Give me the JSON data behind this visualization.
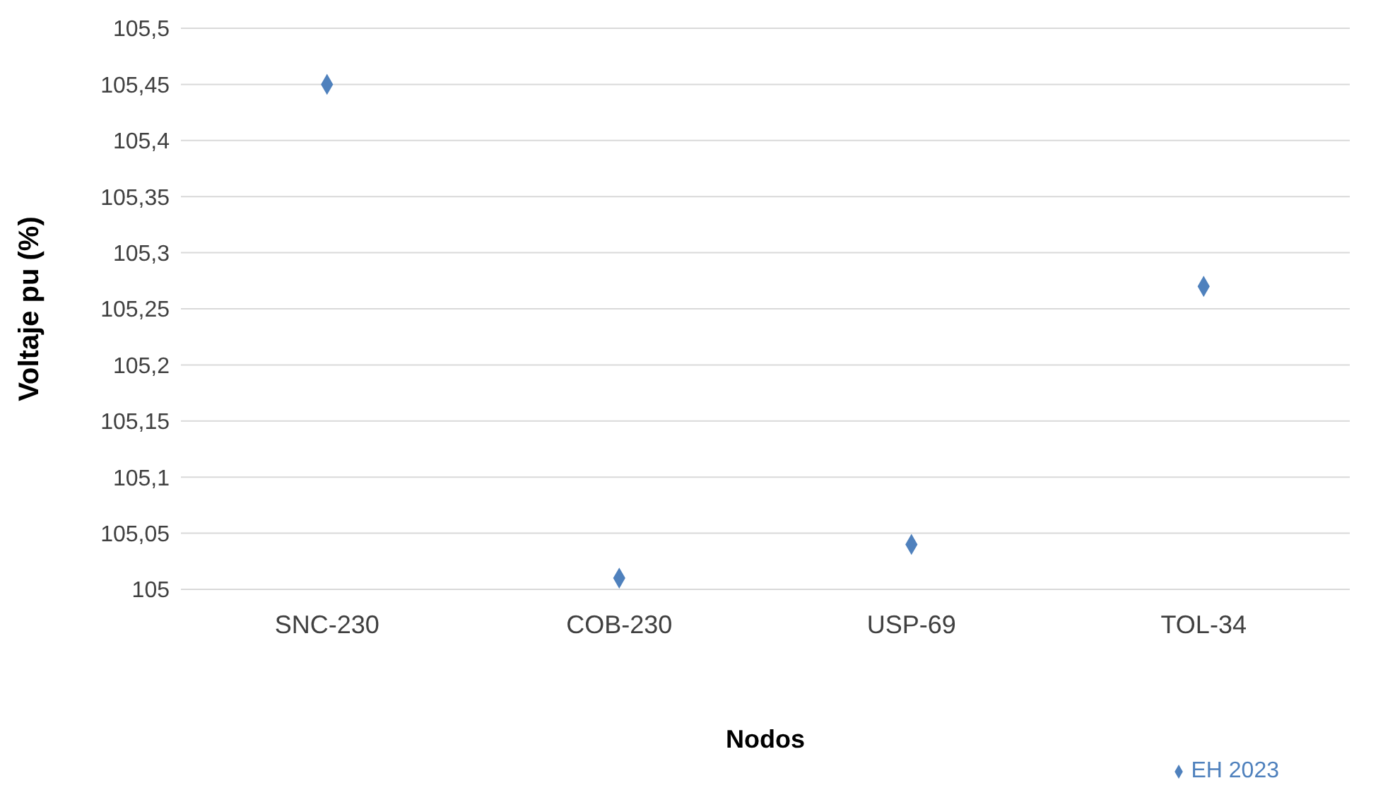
{
  "chart_data": {
    "type": "scatter",
    "xlabel": "Nodos",
    "ylabel": "Voltaje pu (%)",
    "categories": [
      "SNC-230",
      "COB-230",
      "USP-69",
      "TOL-34"
    ],
    "series": [
      {
        "name": "EH 2023",
        "color": "#4f81bd",
        "values": [
          105.45,
          105.01,
          105.04,
          105.27
        ]
      }
    ],
    "ylim": [
      105,
      105.5
    ],
    "yticks": [
      105,
      {
        "value": 105.05,
        "label": "105,05"
      },
      {
        "value": 105.1,
        "label": "105,1"
      },
      {
        "value": 105.15,
        "label": "105,15"
      },
      {
        "value": 105.2,
        "label": "105,2"
      },
      {
        "value": 105.25,
        "label": "105,25"
      },
      {
        "value": 105.3,
        "label": "105,3"
      },
      {
        "value": 105.35,
        "label": "105,35"
      },
      {
        "value": 105.4,
        "label": "105,4"
      },
      {
        "value": 105.45,
        "label": "105,45"
      },
      {
        "value": 105.5,
        "label": "105,5"
      }
    ],
    "grid": "y",
    "legend": "bottom right",
    "marker": "diamond"
  }
}
